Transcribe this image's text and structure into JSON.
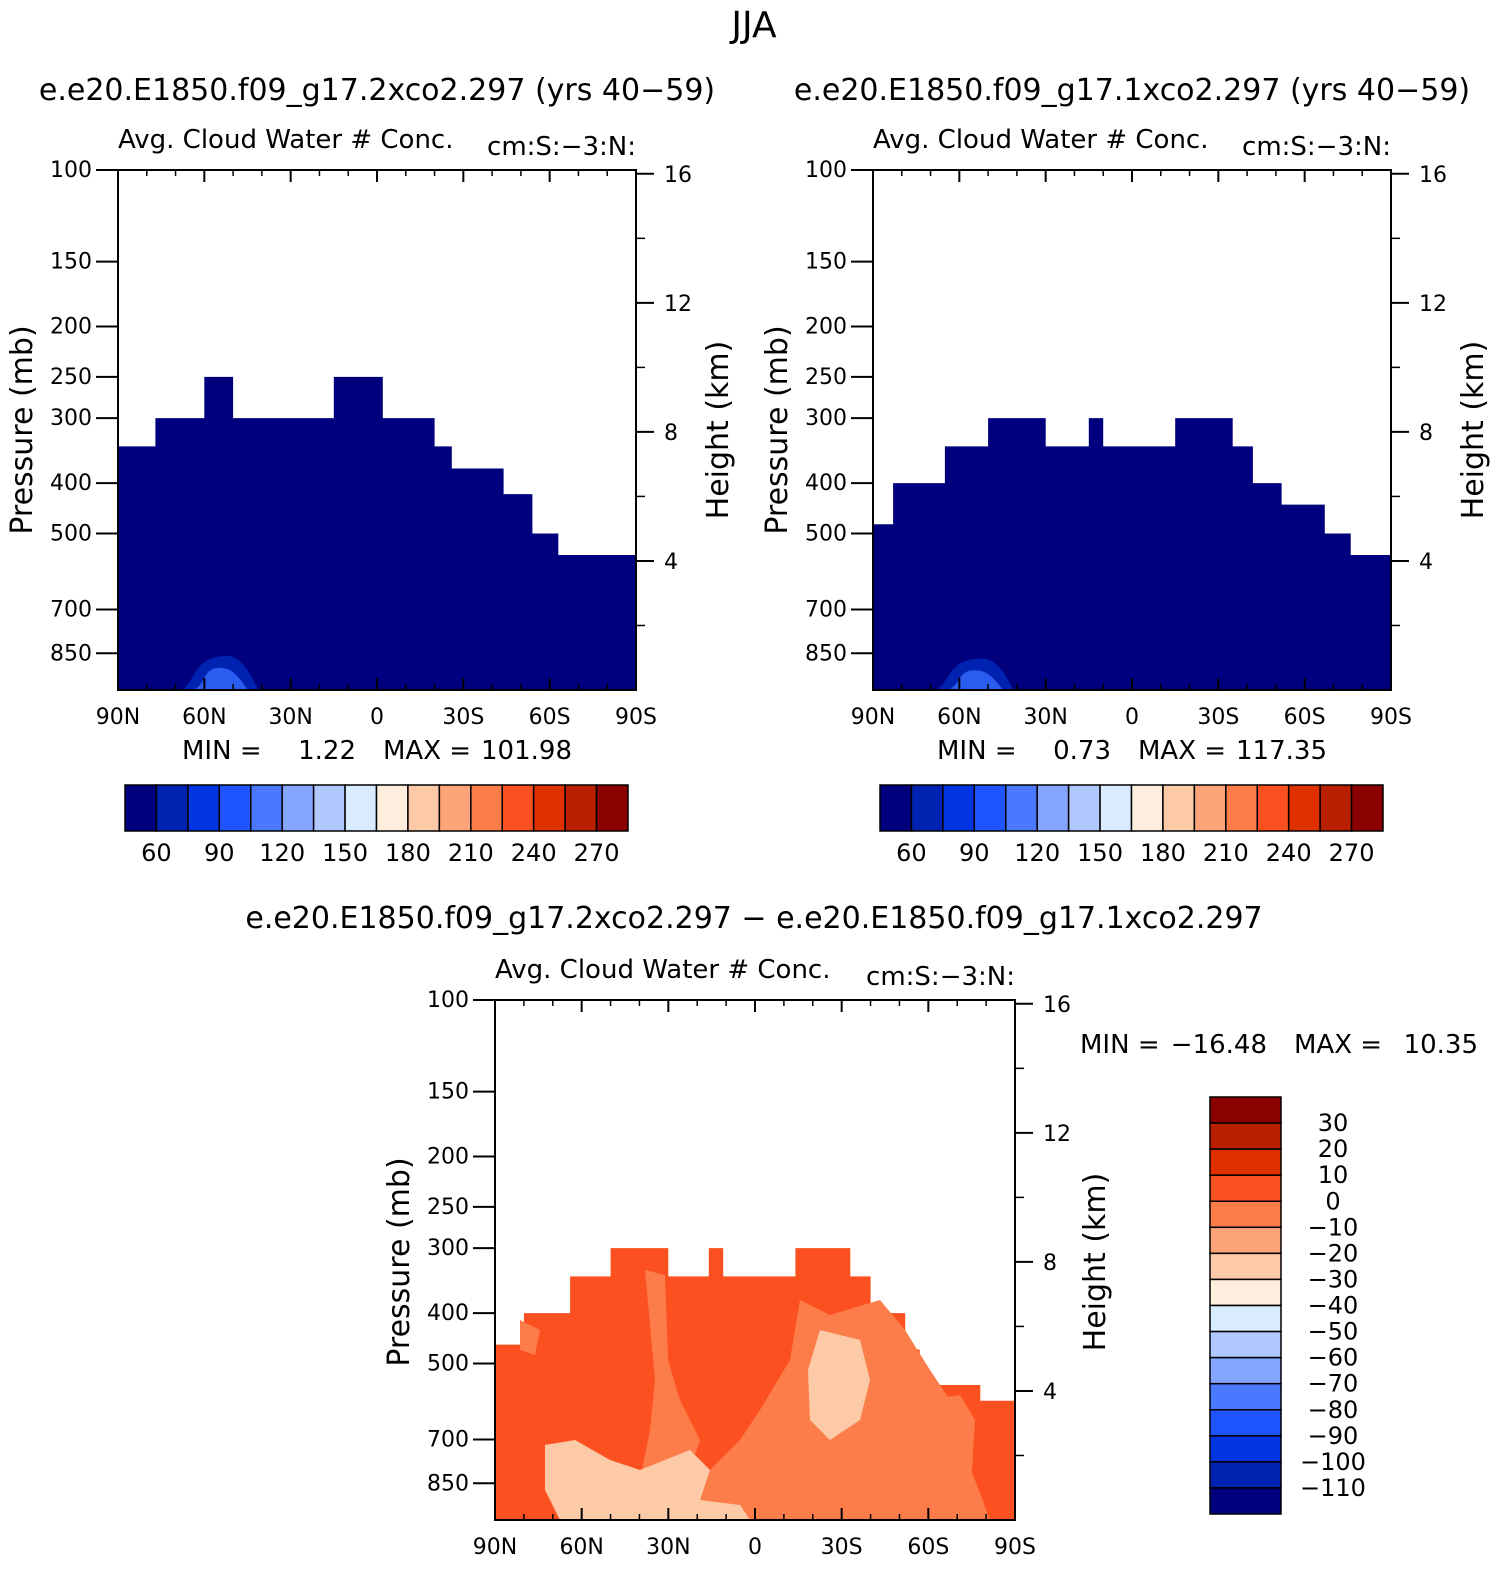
{
  "figure": {
    "title": "JJA",
    "panel_titles": [
      "e.e20.E1850.f09_g17.2xco2.297 (yrs 40-59)",
      "e.e20.E1850.f09_g17.1xco2.297 (yrs 40-59)",
      "e.e20.E1850.f09_g17.2xco2.297 - e.e20.E1850.f09_g17.1xco2.297"
    ]
  },
  "colors": {
    "abs_palette": [
      "#00007f",
      "#0022b0",
      "#0035e0",
      "#1f55ff",
      "#4a78ff",
      "#84a6ff",
      "#b1c8ff",
      "#d9ebff",
      "#ffeedd",
      "#fdcaa8",
      "#fca57a",
      "#fc7d4a",
      "#fc5020",
      "#e03000",
      "#b82000",
      "#8b0000"
    ],
    "diff_palette": [
      "#00007f",
      "#0022b0",
      "#0035e0",
      "#1f55ff",
      "#4a78ff",
      "#84a6ff",
      "#b1c8ff",
      "#d9ebff",
      "#ffeedd",
      "#fdcaa8",
      "#fca57a",
      "#fc7d4a",
      "#fc5020",
      "#e03000",
      "#b82000",
      "#8b0000"
    ]
  },
  "chart_data": [
    {
      "type": "heatmap",
      "id": "panel_2xco2",
      "title": "e.e20.E1850.f09_g17.2xco2.297 (yrs 40-59)",
      "variable_label": "Avg. Cloud Water # Conc.",
      "units_label": "cm:S:-3:N:",
      "xlabel": "",
      "ylabel": "Pressure (mb)",
      "y2label": "Height (km)",
      "x_ticks": [
        "90N",
        "60N",
        "30N",
        "0",
        "30S",
        "60S",
        "90S"
      ],
      "x_tick_values": [
        90,
        60,
        30,
        0,
        -30,
        -60,
        -90
      ],
      "y_ticks": [
        "100",
        "150",
        "200",
        "250",
        "300",
        "400",
        "500",
        "700",
        "850"
      ],
      "y_tick_values": [
        100,
        150,
        200,
        250,
        300,
        400,
        500,
        700,
        850
      ],
      "y2_ticks": [
        "16",
        "12",
        "8",
        "4"
      ],
      "y2_tick_values": [
        16,
        12,
        8,
        4
      ],
      "xlim": [
        90,
        -90
      ],
      "ylim_pressure": [
        100,
        1000
      ],
      "min_label": "MIN =",
      "min_value": "1.22",
      "max_label": "MAX =",
      "max_value": "101.98",
      "colorbar_labels": [
        "60",
        "90",
        "120",
        "150",
        "180",
        "210",
        "240",
        "270"
      ],
      "fill_level": "<45",
      "top_profile_lat_to_pressure": [
        [
          90,
          340
        ],
        [
          77,
          340
        ],
        [
          77,
          300
        ],
        [
          60,
          300
        ],
        [
          60,
          250
        ],
        [
          50,
          250
        ],
        [
          50,
          300
        ],
        [
          15,
          300
        ],
        [
          15,
          250
        ],
        [
          -2,
          250
        ],
        [
          -2,
          300
        ],
        [
          -20,
          300
        ],
        [
          -20,
          340
        ],
        [
          -26,
          340
        ],
        [
          -26,
          375
        ],
        [
          -44,
          375
        ],
        [
          -44,
          420
        ],
        [
          -54,
          420
        ],
        [
          -54,
          500
        ],
        [
          -63,
          500
        ],
        [
          -63,
          550
        ],
        [
          -90,
          550
        ],
        [
          -90,
          1000
        ],
        [
          90,
          1000
        ]
      ],
      "enhanced_region": {
        "lat_range": [
          68,
          43
        ],
        "max_top_pressure": 860,
        "levels": [
          "45-60",
          "60-75"
        ]
      }
    },
    {
      "type": "heatmap",
      "id": "panel_1xco2",
      "title": "e.e20.E1850.f09_g17.1xco2.297 (yrs 40-59)",
      "variable_label": "Avg. Cloud Water # Conc.",
      "units_label": "cm:S:-3:N:",
      "xlabel": "",
      "ylabel": "Pressure (mb)",
      "y2label": "Height (km)",
      "x_ticks": [
        "90N",
        "60N",
        "30N",
        "0",
        "30S",
        "60S",
        "90S"
      ],
      "x_tick_values": [
        90,
        60,
        30,
        0,
        -30,
        -60,
        -90
      ],
      "y_ticks": [
        "100",
        "150",
        "200",
        "250",
        "300",
        "400",
        "500",
        "700",
        "850"
      ],
      "y_tick_values": [
        100,
        150,
        200,
        250,
        300,
        400,
        500,
        700,
        850
      ],
      "y2_ticks": [
        "16",
        "12",
        "8",
        "4"
      ],
      "y2_tick_values": [
        16,
        12,
        8,
        4
      ],
      "xlim": [
        90,
        -90
      ],
      "ylim_pressure": [
        100,
        1000
      ],
      "min_label": "MIN =",
      "min_value": "0.73",
      "max_label": "MAX =",
      "max_value": "117.35",
      "colorbar_labels": [
        "60",
        "90",
        "120",
        "150",
        "180",
        "210",
        "240",
        "270"
      ],
      "fill_level": "<45",
      "top_profile_lat_to_pressure": [
        [
          90,
          480
        ],
        [
          83,
          480
        ],
        [
          83,
          400
        ],
        [
          65,
          400
        ],
        [
          65,
          340
        ],
        [
          50,
          340
        ],
        [
          50,
          300
        ],
        [
          30,
          300
        ],
        [
          30,
          340
        ],
        [
          15,
          340
        ],
        [
          15,
          300
        ],
        [
          10,
          300
        ],
        [
          10,
          340
        ],
        [
          -15,
          340
        ],
        [
          -15,
          300
        ],
        [
          -35,
          300
        ],
        [
          -35,
          340
        ],
        [
          -42,
          340
        ],
        [
          -42,
          400
        ],
        [
          -52,
          400
        ],
        [
          -52,
          440
        ],
        [
          -67,
          440
        ],
        [
          -67,
          500
        ],
        [
          -76,
          500
        ],
        [
          -76,
          550
        ],
        [
          -90,
          550
        ],
        [
          -90,
          1000
        ],
        [
          90,
          1000
        ]
      ],
      "enhanced_region": {
        "lat_range": [
          68,
          43
        ],
        "max_top_pressure": 870,
        "levels": [
          "45-60",
          "60-75"
        ]
      }
    },
    {
      "type": "heatmap",
      "id": "panel_diff",
      "title": "e.e20.E1850.f09_g17.2xco2.297 - e.e20.E1850.f09_g17.1xco2.297",
      "variable_label": "Avg. Cloud Water # Conc.",
      "units_label": "cm:S:-3:N:",
      "xlabel": "",
      "ylabel": "Pressure (mb)",
      "y2label": "Height (km)",
      "x_ticks": [
        "90N",
        "60N",
        "30N",
        "0",
        "30S",
        "60S",
        "90S"
      ],
      "x_tick_values": [
        90,
        60,
        30,
        0,
        -30,
        -60,
        -90
      ],
      "y_ticks": [
        "100",
        "150",
        "200",
        "250",
        "300",
        "400",
        "500",
        "700",
        "850"
      ],
      "y_tick_values": [
        100,
        150,
        200,
        250,
        300,
        400,
        500,
        700,
        850
      ],
      "y2_ticks": [
        "16",
        "12",
        "8",
        "4"
      ],
      "y2_tick_values": [
        16,
        12,
        8,
        4
      ],
      "xlim": [
        90,
        -90
      ],
      "ylim_pressure": [
        100,
        1000
      ],
      "min_label": "MIN =",
      "min_value": "-16.48",
      "max_label": "MAX =",
      "max_value": "10.35",
      "colorbar_labels": [
        "30",
        "20",
        "10",
        "0",
        "-10",
        "-20",
        "-30",
        "-40",
        "-50",
        "-60",
        "-70",
        "-80",
        "-90",
        "-100",
        "-110"
      ],
      "fill_level": "0 to 10",
      "top_profile_lat_to_pressure": [
        [
          90,
          460
        ],
        [
          80,
          460
        ],
        [
          80,
          400
        ],
        [
          64,
          400
        ],
        [
          64,
          340
        ],
        [
          50,
          340
        ],
        [
          50,
          300
        ],
        [
          30,
          300
        ],
        [
          30,
          340
        ],
        [
          16,
          340
        ],
        [
          16,
          300
        ],
        [
          11,
          300
        ],
        [
          11,
          340
        ],
        [
          -14,
          340
        ],
        [
          -14,
          300
        ],
        [
          -33,
          300
        ],
        [
          -33,
          340
        ],
        [
          -40,
          340
        ],
        [
          -40,
          400
        ],
        [
          -52,
          400
        ],
        [
          -52,
          470
        ],
        [
          -57,
          470
        ],
        [
          -57,
          550
        ],
        [
          -78,
          550
        ],
        [
          -78,
          590
        ],
        [
          -90,
          590
        ],
        [
          -90,
          1000
        ],
        [
          90,
          1000
        ]
      ],
      "secondary_level": "-10 to 0",
      "tertiary_level": "-20 to -10"
    }
  ]
}
